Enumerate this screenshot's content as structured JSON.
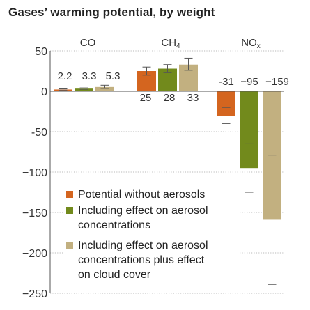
{
  "chart_data": {
    "type": "bar",
    "title": "Gases’ warming potential, by weight",
    "xlabel": "",
    "ylabel": "",
    "ylim": [
      -250,
      50
    ],
    "yticks": [
      50,
      0,
      -50,
      -100,
      -150,
      -200,
      -250
    ],
    "ytick_labels": [
      "50",
      "0",
      "-50",
      "−100",
      "−150",
      "−200",
      "−250"
    ],
    "grid": "dotted horizontal",
    "legend_position": "bottom-left",
    "categories": [
      {
        "label": "CO",
        "value_labels": [
          "2.2",
          "3.3",
          "5.3"
        ]
      },
      {
        "label": "CH",
        "subscript": "4",
        "value_labels": [
          "25",
          "28",
          "33"
        ]
      },
      {
        "label": "NO",
        "subscript": "x",
        "value_labels": [
          "-31",
          "−95",
          "−159"
        ]
      }
    ],
    "series": [
      {
        "name": "Potential without aerosols",
        "color": "#d4651f",
        "values": [
          2.2,
          25,
          -31
        ],
        "error": [
          [
            1.5,
            3.0
          ],
          [
            20,
            30
          ],
          [
            -40,
            -20
          ]
        ]
      },
      {
        "name": "Including effect on aerosol concentrations",
        "color": "#728a1c",
        "values": [
          3.3,
          28,
          -95
        ],
        "error": [
          [
            2.5,
            4.2
          ],
          [
            23,
            33
          ],
          [
            -125,
            -65
          ]
        ]
      },
      {
        "name": "Including effect on aerosol concentrations plus effect on cloud cover",
        "color": "#c2b080",
        "values": [
          5.3,
          33,
          -159
        ],
        "error": [
          [
            3.5,
            7.5
          ],
          [
            26,
            41
          ],
          [
            -239,
            -79
          ]
        ]
      }
    ],
    "legend": [
      {
        "lines": [
          "Potential without aerosols"
        ]
      },
      {
        "lines": [
          "Including effect on aerosol",
          "concentrations"
        ]
      },
      {
        "lines": [
          "Including effect on aerosol",
          "concentrations plus effect",
          "on cloud cover"
        ]
      }
    ]
  }
}
